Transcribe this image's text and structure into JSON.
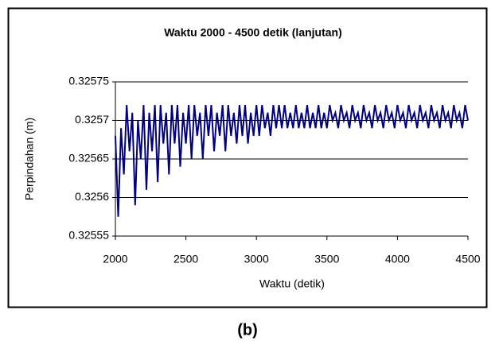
{
  "chart_data": {
    "type": "line",
    "title": "Waktu 2000 - 4500 detik (lanjutan)",
    "x_label": "Waktu (detik)",
    "y_label": "Perpindahan (m)",
    "caption": "(b)",
    "color": "#000080",
    "x": [
      2000,
      2020,
      2040,
      2060,
      2080,
      2100,
      2120,
      2140,
      2160,
      2180,
      2200,
      2220,
      2240,
      2260,
      2280,
      2300,
      2320,
      2340,
      2360,
      2380,
      2400,
      2420,
      2440,
      2460,
      2480,
      2500,
      2520,
      2540,
      2560,
      2580,
      2600,
      2620,
      2640,
      2660,
      2680,
      2700,
      2720,
      2740,
      2760,
      2780,
      2800,
      2820,
      2840,
      2860,
      2880,
      2900,
      2920,
      2940,
      2960,
      2980,
      3000,
      3020,
      3040,
      3060,
      3080,
      3100,
      3120,
      3140,
      3160,
      3180,
      3200,
      3220,
      3240,
      3260,
      3280,
      3300,
      3320,
      3340,
      3360,
      3380,
      3400,
      3420,
      3440,
      3460,
      3480,
      3500,
      3520,
      3540,
      3560,
      3580,
      3600,
      3620,
      3640,
      3660,
      3680,
      3700,
      3720,
      3740,
      3760,
      3780,
      3800,
      3820,
      3840,
      3860,
      3880,
      3900,
      3920,
      3940,
      3960,
      3980,
      4000,
      4020,
      4040,
      4060,
      4080,
      4100,
      4120,
      4140,
      4160,
      4180,
      4200,
      4220,
      4240,
      4260,
      4280,
      4300,
      4320,
      4340,
      4360,
      4380,
      4400,
      4420,
      4440,
      4460,
      4480,
      4500
    ],
    "values": [
      0.32568,
      0.325575,
      0.32569,
      0.32563,
      0.32572,
      0.32566,
      0.32571,
      0.32559,
      0.3257,
      0.32565,
      0.32572,
      0.32561,
      0.32571,
      0.32566,
      0.32572,
      0.32562,
      0.32572,
      0.32567,
      0.32571,
      0.32563,
      0.32572,
      0.32567,
      0.32572,
      0.32564,
      0.32571,
      0.32567,
      0.32572,
      0.32565,
      0.32572,
      0.32568,
      0.32571,
      0.32565,
      0.32572,
      0.32568,
      0.32572,
      0.32566,
      0.32571,
      0.32568,
      0.32572,
      0.32566,
      0.32572,
      0.32568,
      0.32571,
      0.32567,
      0.32572,
      0.32568,
      0.32572,
      0.32567,
      0.32571,
      0.32568,
      0.32572,
      0.32568,
      0.32572,
      0.32569,
      0.32571,
      0.32568,
      0.32572,
      0.32569,
      0.32572,
      0.32569,
      0.32572,
      0.32569,
      0.32571,
      0.32569,
      0.32572,
      0.32569,
      0.32571,
      0.32569,
      0.32572,
      0.32569,
      0.32571,
      0.32569,
      0.32572,
      0.32569,
      0.32571,
      0.32569,
      0.32572,
      0.3257,
      0.32571,
      0.32569,
      0.32572,
      0.3257,
      0.32571,
      0.32569,
      0.32572,
      0.3257,
      0.32571,
      0.32569,
      0.32572,
      0.3257,
      0.32571,
      0.32569,
      0.32572,
      0.3257,
      0.32571,
      0.32569,
      0.32572,
      0.3257,
      0.32571,
      0.32569,
      0.32572,
      0.3257,
      0.32571,
      0.32569,
      0.32572,
      0.3257,
      0.32571,
      0.32569,
      0.32572,
      0.3257,
      0.32571,
      0.32569,
      0.32572,
      0.3257,
      0.32571,
      0.32569,
      0.32572,
      0.3257,
      0.32571,
      0.32569,
      0.32572,
      0.3257,
      0.32571,
      0.32569,
      0.32572,
      0.3257
    ],
    "xlim": [
      2000,
      4500
    ],
    "xticks": [
      2000,
      2500,
      3000,
      3500,
      4000,
      4500
    ],
    "ylim": [
      0.32555,
      0.32575
    ],
    "yticks": [
      0.32555,
      0.3256,
      0.32565,
      0.3257,
      0.32575
    ],
    "grid": true
  }
}
